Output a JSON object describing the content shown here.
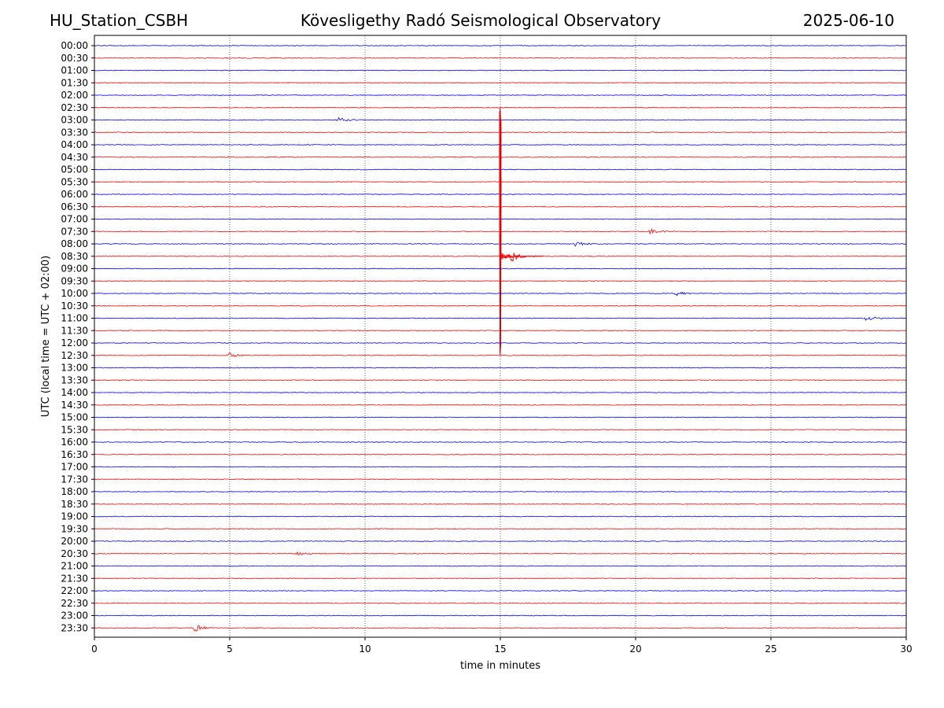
{
  "header": {
    "station": "HU_Station_CSBH",
    "observatory": "Kövesligethy Radó Seismological Observatory",
    "date": "2025-06-10"
  },
  "chart_data": {
    "type": "line",
    "title": "Kövesligethy Radó Seismological Observatory",
    "xlabel": "time in minutes",
    "ylabel": "UTC (local time = UTC + 02:00)",
    "xlim": [
      0,
      30
    ],
    "xticks": [
      0,
      5,
      10,
      15,
      20,
      25,
      30
    ],
    "grid": "vertical dotted at 5-minute ticks",
    "row_labels": [
      "00:00",
      "00:30",
      "01:00",
      "01:30",
      "02:00",
      "02:30",
      "03:00",
      "03:30",
      "04:00",
      "04:30",
      "05:00",
      "05:30",
      "06:00",
      "06:30",
      "07:00",
      "07:30",
      "08:00",
      "08:30",
      "09:00",
      "09:30",
      "10:00",
      "10:30",
      "11:00",
      "11:30",
      "12:00",
      "12:30",
      "13:00",
      "13:30",
      "14:00",
      "14:30",
      "15:00",
      "15:30",
      "16:00",
      "16:30",
      "17:00",
      "17:30",
      "18:00",
      "18:30",
      "19:00",
      "19:30",
      "20:00",
      "20:30",
      "21:00",
      "21:30",
      "22:00",
      "22:30",
      "23:00",
      "23:30"
    ],
    "trace_colors": [
      "#0000ff",
      "#ff0000"
    ],
    "events": [
      {
        "row": "08:30",
        "minute": 15.0,
        "peak_up_rows": 12,
        "peak_down_rows": 8,
        "color": "#ff0000"
      },
      {
        "row": "08:30",
        "minute": 15.4,
        "peak_up_rows": 0.5,
        "peak_down_rows": 0.5,
        "color": "#ff0000"
      },
      {
        "row": "07:30",
        "minute": 20.5,
        "peak_up_rows": 0.25,
        "peak_down_rows": 0.25,
        "color": "#ff0000"
      },
      {
        "row": "03:00",
        "minute": 9.0,
        "peak_up_rows": 0.2,
        "peak_down_rows": 0.2,
        "color": "#0000ff"
      },
      {
        "row": "08:00",
        "minute": 17.8,
        "peak_up_rows": 0.2,
        "peak_down_rows": 0.2,
        "color": "#0000ff"
      },
      {
        "row": "10:00",
        "minute": 21.5,
        "peak_up_rows": 0.2,
        "peak_down_rows": 0.2,
        "color": "#0000ff"
      },
      {
        "row": "11:00",
        "minute": 28.5,
        "peak_up_rows": 0.3,
        "peak_down_rows": 0.3,
        "color": "#0000ff"
      },
      {
        "row": "23:30",
        "minute": 3.7,
        "peak_up_rows": 0.35,
        "peak_down_rows": 0.25,
        "color": "#ff0000"
      },
      {
        "row": "20:30",
        "minute": 7.5,
        "peak_up_rows": 0.15,
        "peak_down_rows": 0.15,
        "color": "#ff0000"
      },
      {
        "row": "12:30",
        "minute": 5.0,
        "peak_up_rows": 0.2,
        "peak_down_rows": 0.2,
        "color": "#ff0000"
      }
    ]
  }
}
